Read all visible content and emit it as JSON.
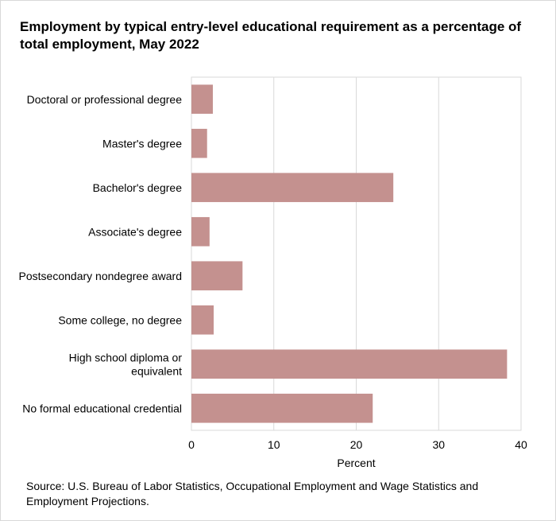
{
  "chart_data": {
    "type": "bar",
    "orientation": "horizontal",
    "title": "Employment by typical entry-level educational requirement as a percentage of total employment, May 2022",
    "categories": [
      "Doctoral or professional degree",
      "Master's degree",
      "Bachelor's degree",
      "Associate's degree",
      "Postsecondary nondegree award",
      "Some college, no degree",
      "High school diploma or equivalent",
      "No formal educational credential"
    ],
    "category_display_lines": [
      [
        "Doctoral or professional degree"
      ],
      [
        "Master's degree"
      ],
      [
        "Bachelor's degree"
      ],
      [
        "Associate's degree"
      ],
      [
        "Postsecondary nondegree award"
      ],
      [
        "Some college, no degree"
      ],
      [
        "High school diploma or",
        "equivalent"
      ],
      [
        "No formal educational credential"
      ]
    ],
    "values": [
      2.6,
      1.9,
      24.5,
      2.2,
      6.2,
      2.7,
      38.3,
      22.0
    ],
    "xlabel": "Percent",
    "ylabel": "",
    "xlim": [
      0,
      40
    ],
    "xticks": [
      0,
      10,
      20,
      30,
      40
    ],
    "grid": "vertical",
    "legend": "none",
    "bar_color": "#c4918f",
    "gridline_color": "#d9d9d9",
    "source": "Source: U.S. Bureau of Labor Statistics, Occupational Employment and Wage Statistics and Employment Projections."
  }
}
